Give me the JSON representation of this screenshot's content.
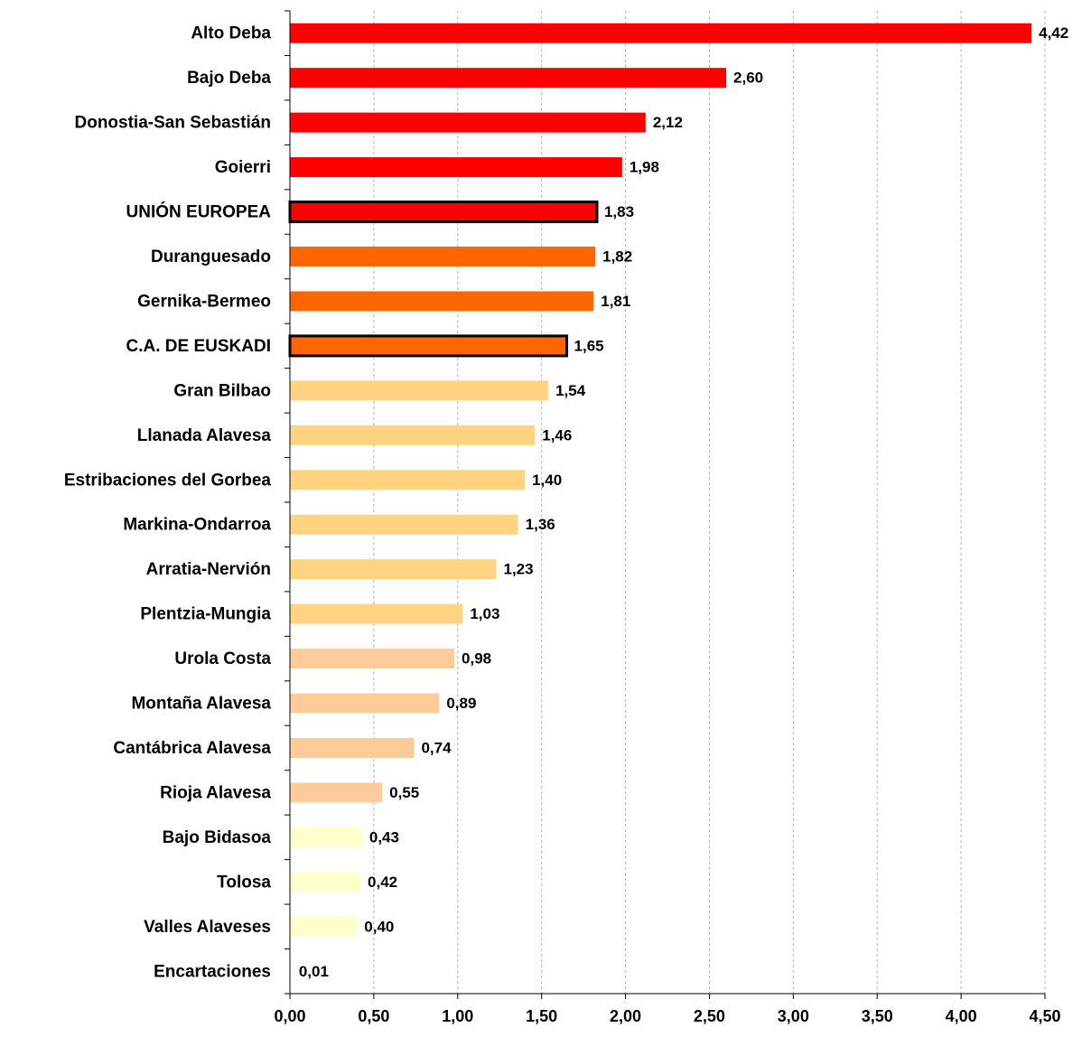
{
  "chart_data": {
    "type": "bar",
    "orientation": "horizontal",
    "categories": [
      "Alto Deba",
      "Bajo Deba",
      "Donostia-San Sebastián",
      "Goierri",
      "UNIÓN EUROPEA",
      "Duranguesado",
      "Gernika-Bermeo",
      "C.A. DE EUSKADI",
      "Gran Bilbao",
      "Llanada Alavesa",
      "Estribaciones del Gorbea",
      "Markina-Ondarroa",
      "Arratia-Nervión",
      "Plentzia-Mungia",
      "Urola Costa",
      "Montaña Alavesa",
      "Cantábrica Alavesa",
      "Rioja Alavesa",
      "Bajo Bidasoa",
      "Tolosa",
      "Valles Alaveses",
      "Encartaciones"
    ],
    "values": [
      4.42,
      2.6,
      2.12,
      1.98,
      1.83,
      1.82,
      1.81,
      1.65,
      1.54,
      1.46,
      1.4,
      1.36,
      1.23,
      1.03,
      0.98,
      0.89,
      0.74,
      0.55,
      0.43,
      0.42,
      0.4,
      0.01
    ],
    "value_labels": [
      "4,42",
      "2,60",
      "2,12",
      "1,98",
      "1,83",
      "1,82",
      "1,81",
      "1,65",
      "1,54",
      "1,46",
      "1,40",
      "1,36",
      "1,23",
      "1,03",
      "0,98",
      "0,89",
      "0,74",
      "0,55",
      "0,43",
      "0,42",
      "0,40",
      "0,01"
    ],
    "colors": [
      "#ff0000",
      "#ff0000",
      "#ff0000",
      "#ff0000",
      "#ff0000",
      "#ff6600",
      "#ff6600",
      "#ff6600",
      "#ffd37f",
      "#ffd37f",
      "#ffd37f",
      "#ffd37f",
      "#ffd37f",
      "#ffd37f",
      "#ffcc99",
      "#ffcc99",
      "#ffcc99",
      "#ffcc99",
      "#ffffcc",
      "#ffffcc",
      "#ffffcc",
      "#ffffcc"
    ],
    "outlined": [
      false,
      false,
      false,
      false,
      true,
      false,
      false,
      true,
      false,
      false,
      false,
      false,
      false,
      false,
      false,
      false,
      false,
      false,
      false,
      false,
      false,
      false
    ],
    "xlim": [
      0,
      4.5
    ],
    "xticks": [
      {
        "value": 0,
        "label": "0,00"
      },
      {
        "value": 0.5,
        "label": "0,50"
      },
      {
        "value": 1,
        "label": "1,00"
      },
      {
        "value": 1.5,
        "label": "1,50"
      },
      {
        "value": 2,
        "label": "2,00"
      },
      {
        "value": 2.5,
        "label": "2,50"
      },
      {
        "value": 3,
        "label": "3,00"
      },
      {
        "value": 3.5,
        "label": "3,50"
      },
      {
        "value": 4,
        "label": "4,00"
      },
      {
        "value": 4.5,
        "label": "4,50"
      }
    ],
    "grid": true
  }
}
